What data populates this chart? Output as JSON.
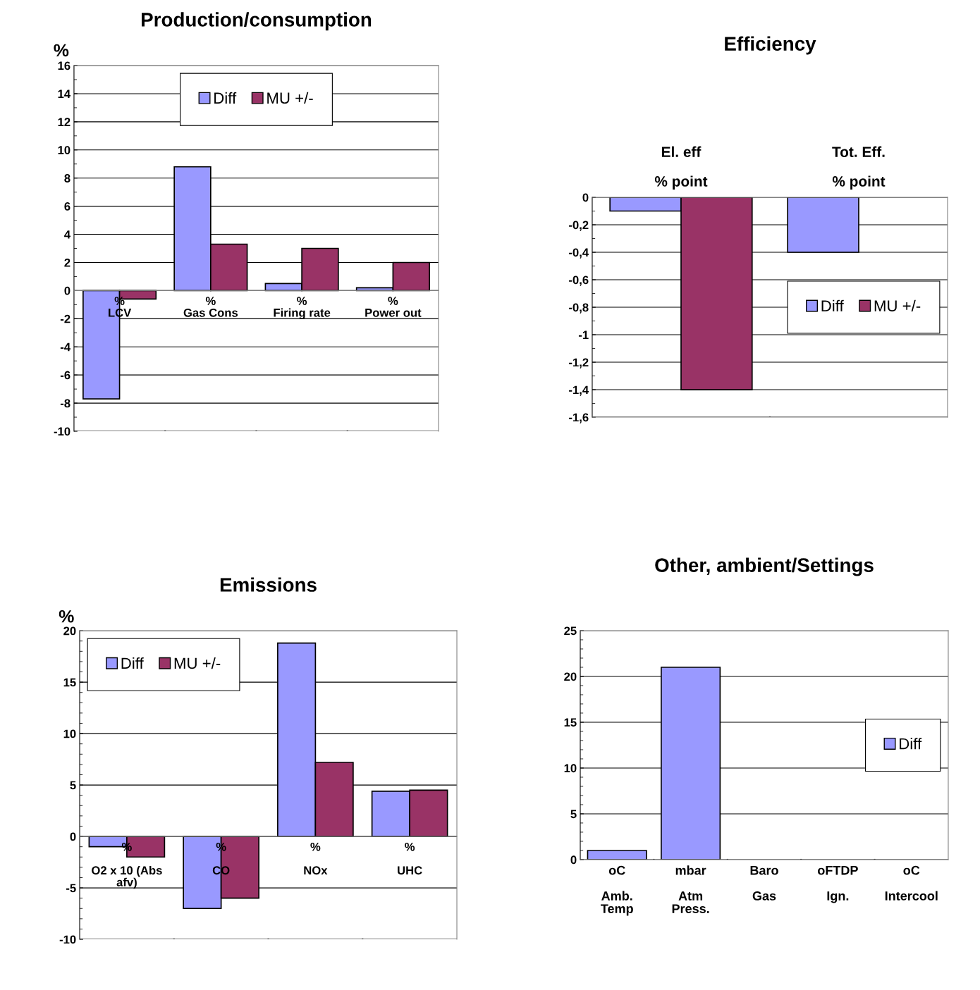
{
  "chart_data": [
    {
      "type": "bar",
      "title": "Production/consumption",
      "ylabel": "%",
      "categories": [
        "%\nLCV",
        "%\nGas Cons",
        "%\nFiring rate",
        "%\nPower out"
      ],
      "series": [
        {
          "name": "Diff",
          "color": "#9999ff",
          "values": [
            -7.7,
            8.8,
            0.5,
            0.2
          ]
        },
        {
          "name": "MU +/-",
          "color": "#993366",
          "values": [
            -0.6,
            3.3,
            3.0,
            2.0
          ]
        }
      ],
      "ylim": [
        -10,
        16
      ],
      "yticks": [
        -10,
        -8,
        -6,
        -4,
        -2,
        0,
        2,
        4,
        6,
        8,
        10,
        12,
        14,
        16
      ],
      "grid": "y",
      "legend": "upper center"
    },
    {
      "type": "bar",
      "title": "Efficiency",
      "categories": [
        "El. eff\n\n% point",
        "Tot. Eff.\n\n% point"
      ],
      "series": [
        {
          "name": "Diff",
          "color": "#9999ff",
          "values": [
            -0.1,
            -0.4
          ]
        },
        {
          "name": "MU +/-",
          "color": "#993366",
          "values": [
            -1.4,
            null
          ]
        }
      ],
      "ylim": [
        -1.6,
        0
      ],
      "yticks": [
        {
          "value": -1.6,
          "label": "-1,6"
        },
        {
          "value": -1.4,
          "label": "-1,4"
        },
        {
          "value": -1.2,
          "label": "-1,2"
        },
        -1,
        {
          "value": -0.8,
          "label": "-0,8"
        },
        {
          "value": -0.6,
          "label": "-0,6"
        },
        {
          "value": -0.4,
          "label": "-0,4"
        },
        {
          "value": -0.2,
          "label": "-0,2"
        },
        0
      ],
      "grid": "y",
      "legend": "center right"
    },
    {
      "type": "bar",
      "title": "Emissions",
      "ylabel": "%",
      "categories": [
        "%\n\nO2 x 10 (Abs\nafv)",
        "%\n\nCO",
        "%\n\nNOx",
        "%\n\nUHC"
      ],
      "series": [
        {
          "name": "Diff",
          "color": "#9999ff",
          "values": [
            -1.0,
            -7.0,
            18.8,
            4.4
          ]
        },
        {
          "name": "MU +/-",
          "color": "#993366",
          "values": [
            -2.0,
            -6.0,
            7.2,
            4.5
          ]
        }
      ],
      "ylim": [
        -10,
        20
      ],
      "yticks": [
        -10,
        -5,
        0,
        5,
        10,
        15,
        20
      ],
      "grid": "y",
      "legend": "upper left"
    },
    {
      "type": "bar",
      "title": "Other, ambient/Settings",
      "categories": [
        "oC\n\nAmb.\nTemp",
        "mbar\n\nAtm\nPress.",
        "Baro\n\nGas",
        "oFTDP\n\nIgn.",
        "oC\n\nIntercool"
      ],
      "series": [
        {
          "name": "Diff",
          "color": "#9999ff",
          "values": [
            1.0,
            21.0,
            null,
            null,
            null
          ]
        }
      ],
      "ylim": [
        0,
        25
      ],
      "yticks": [
        0,
        5,
        10,
        15,
        20,
        25
      ],
      "grid": "y",
      "legend": "center right"
    }
  ]
}
